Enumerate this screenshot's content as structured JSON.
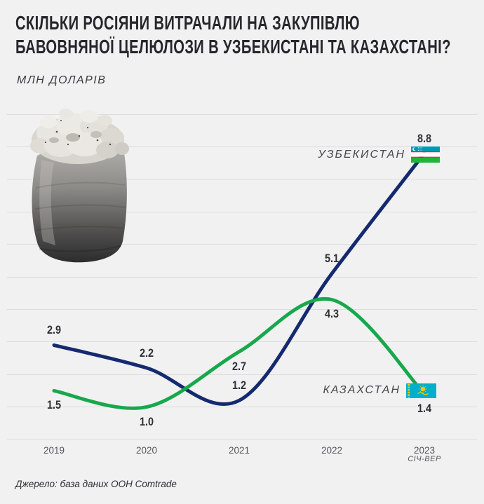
{
  "header": {
    "title_line1": "СКІЛЬКИ РОСІЯНИ ВИТРАЧАЛИ НА ЗАКУПІВЛЮ",
    "title_line2": "БАВОВНЯНОЇ ЦЕЛЮЛОЗИ В УЗБЕКИСТАНІ ТА КАЗАХСТАНІ?",
    "subtitle": "МЛН ДОЛАРІВ"
  },
  "chart_data": {
    "type": "line",
    "title": "Скільки росіяни витрачали на закупівлю бавовняної целюлози в Узбекистані та Казахстані?",
    "unit": "МЛН ДОЛАРІВ",
    "categories": [
      "2019",
      "2020",
      "2021",
      "2022",
      "2023"
    ],
    "x_note": "СІЧ-ВЕР",
    "ylim": [
      0,
      10
    ],
    "y_gridline_step": 1,
    "grid": true,
    "legend_position": "at-line-end",
    "series": [
      {
        "name": "УЗБЕКИСТАН",
        "flag_icon": "uzbekistan-flag-icon",
        "color": "#152a6e",
        "label_position": "above",
        "values": [
          2.9,
          2.2,
          1.2,
          5.1,
          8.8
        ]
      },
      {
        "name": "КАЗАХСТАН",
        "flag_icon": "kazakhstan-flag-icon",
        "color": "#18a84c",
        "label_position": "below",
        "values": [
          1.5,
          1.0,
          2.7,
          4.3,
          1.4
        ]
      }
    ]
  },
  "illustration": "cotton-pulp-bale",
  "footer": {
    "source": "Джерело: база даних ООН Comtrade"
  },
  "colors": {
    "background": "#f1f1f2",
    "gridline": "#dcdcde",
    "title": "#26262b",
    "value_label": "#2f3034",
    "axis_label": "#55565b",
    "uzbekistan_line": "#152a6e",
    "kazakhstan_line": "#18a84c"
  }
}
